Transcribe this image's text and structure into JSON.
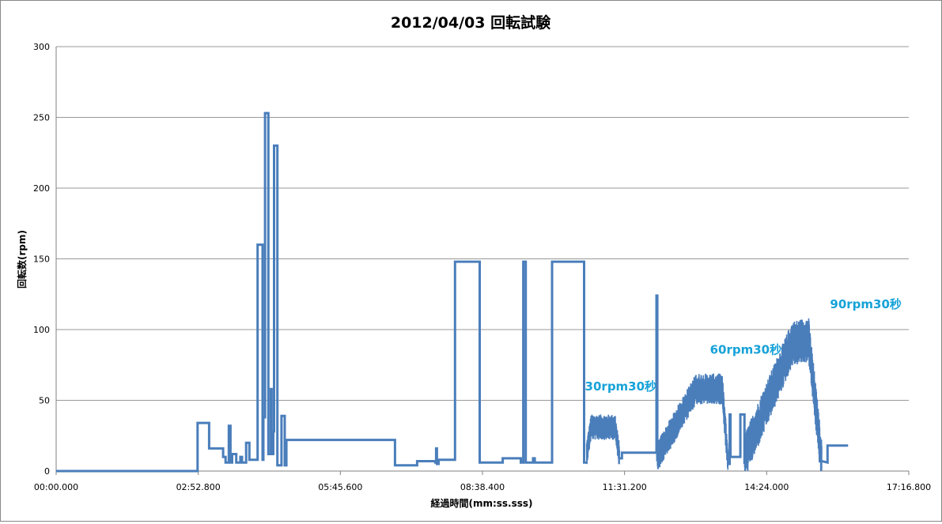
{
  "chart_data": {
    "type": "line",
    "title": "2012/04/03 回転試験",
    "xlabel": "経過時間(mm:ss.sss)",
    "ylabel": "回転数(rpm)",
    "xlim": [
      0,
      1036.8
    ],
    "ylim": [
      0,
      300
    ],
    "grid": true,
    "legend": "none",
    "yticks": [
      0,
      50,
      100,
      150,
      200,
      250,
      300
    ],
    "xticks": [
      {
        "value": 0,
        "label": "00:00.000"
      },
      {
        "value": 172.8,
        "label": "02:52.800"
      },
      {
        "value": 345.6,
        "label": "05:45.600"
      },
      {
        "value": 518.4,
        "label": "08:38.400"
      },
      {
        "value": 691.2,
        "label": "11:31.200"
      },
      {
        "value": 864.0,
        "label": "14:24.000"
      },
      {
        "value": 1036.8,
        "label": "17:16.800"
      }
    ],
    "colors": {
      "series": "#4a7ebb",
      "annotation": "#17a2d8",
      "grid": "#999999"
    },
    "series": [
      {
        "x": [
          0,
          172,
          172,
          186,
          186,
          203,
          203,
          206,
          206,
          210,
          210,
          212,
          212,
          214,
          214,
          219,
          219,
          224,
          224,
          226,
          226,
          231,
          231,
          235,
          235,
          245,
          245,
          251,
          251,
          252,
          252,
          254,
          254,
          258,
          258,
          261,
          261,
          262,
          262,
          264,
          264,
          265,
          265,
          269,
          269,
          274,
          274,
          278,
          278,
          280,
          280,
          412,
          412,
          439,
          439,
          461,
          461,
          462,
          462,
          463,
          463,
          465,
          465,
          485,
          485,
          515,
          515,
          543,
          543,
          565,
          565,
          568,
          568,
          571,
          571,
          580,
          580,
          582,
          582,
          603,
          603,
          642,
          642,
          646,
          646
        ],
        "values": [
          0,
          0,
          34,
          34,
          16,
          16,
          10,
          10,
          6,
          6,
          32,
          32,
          6,
          6,
          12,
          12,
          6,
          6,
          10,
          10,
          6,
          6,
          20,
          20,
          8,
          8,
          160,
          160,
          8,
          8,
          38,
          38,
          253,
          253,
          12,
          12,
          58,
          58,
          12,
          12,
          28,
          28,
          230,
          230,
          4,
          4,
          39,
          39,
          4,
          4,
          22,
          22,
          4,
          4,
          7,
          7,
          6,
          6,
          16,
          16,
          5,
          5,
          8,
          8,
          148,
          148,
          6,
          6,
          9,
          9,
          6,
          6,
          148,
          148,
          6,
          6,
          9,
          9,
          6,
          6,
          148,
          148,
          6,
          6,
          6
        ]
      }
    ],
    "annotations": [
      {
        "text": "30rpm30秒",
        "x": 643,
        "y": 57
      },
      {
        "text": "60rpm30秒",
        "x": 795,
        "y": 83
      },
      {
        "text": "90rpm30秒",
        "x": 941,
        "y": 115
      }
    ]
  }
}
